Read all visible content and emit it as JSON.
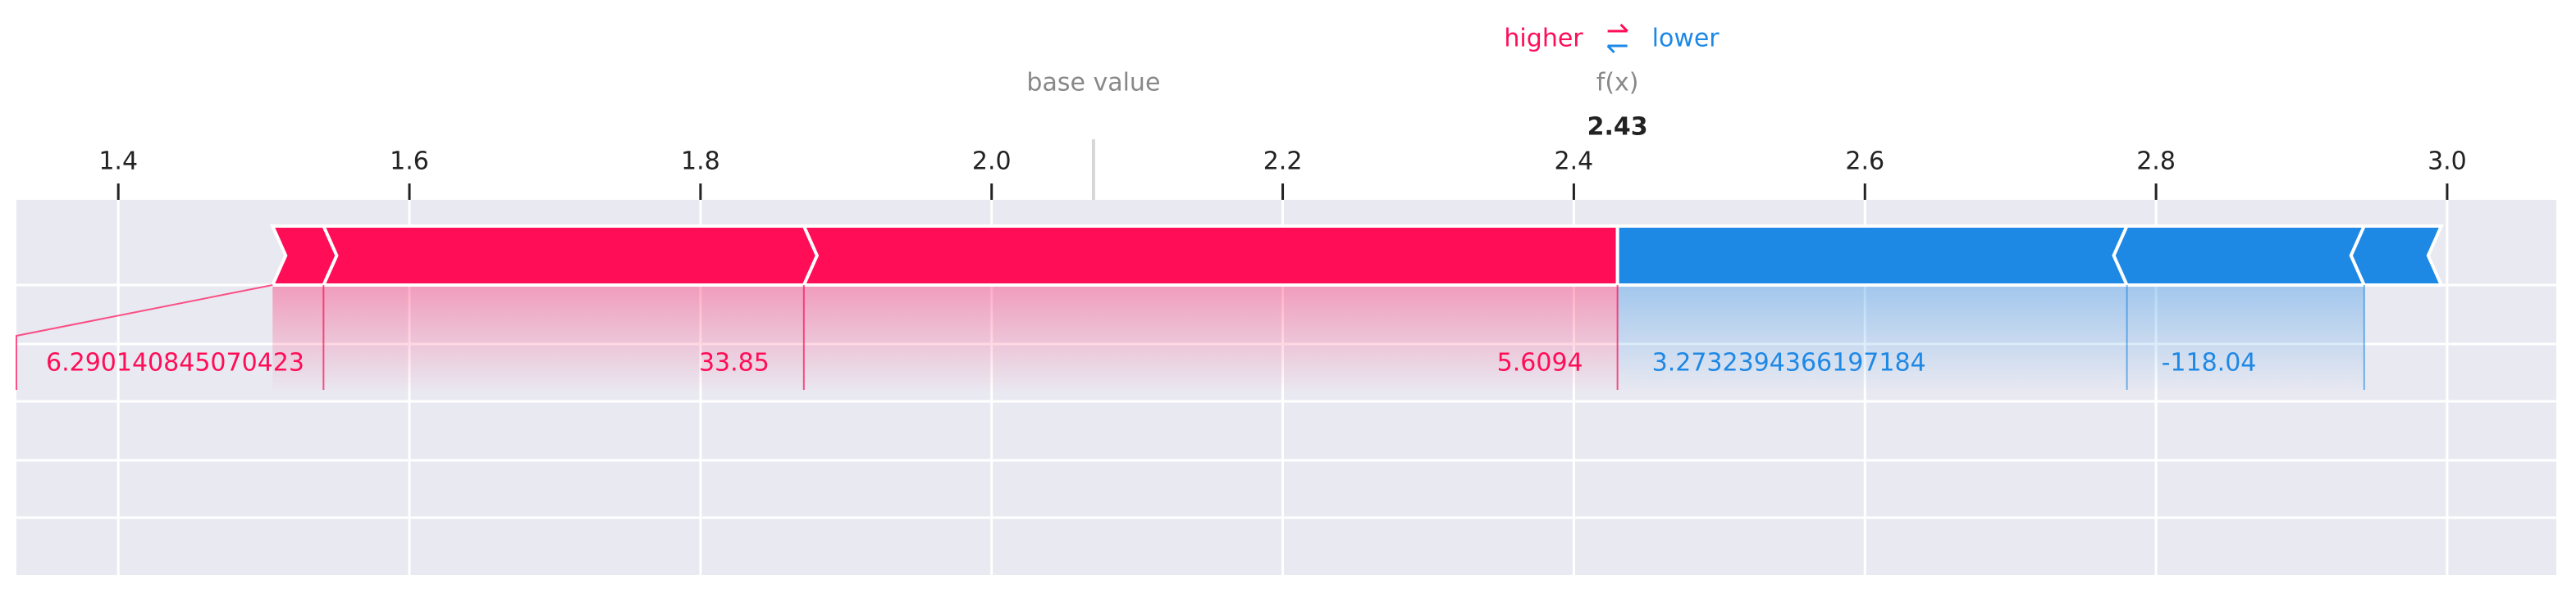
{
  "chart_data": {
    "type": "force",
    "legend": [
      "higher",
      "lower"
    ],
    "base_value_label": "base value",
    "output_label": "f(x)",
    "base_value": 2.07,
    "output_value": 2.43,
    "xlim": [
      1.33,
      3.075
    ],
    "xticks": [
      1.4,
      1.6,
      1.8,
      {
        "value": 2,
        "label": "2.0"
      },
      2.2,
      2.4,
      2.6,
      2.8,
      {
        "value": 3,
        "label": "3.0"
      }
    ],
    "grid": true,
    "series": [
      {
        "name": "higher",
        "color": "#ff0d57",
        "values": [
          0.559,
          0.33,
          0.035
        ],
        "labels": [
          "5.6094",
          "33.85",
          "6.290140845070423"
        ]
      },
      {
        "name": "lower",
        "color": "#1e88e5",
        "values": [
          0.35,
          0.163,
          0.053
        ],
        "labels": [
          "3.2732394366197184",
          "-118.04",
          null
        ]
      }
    ]
  }
}
